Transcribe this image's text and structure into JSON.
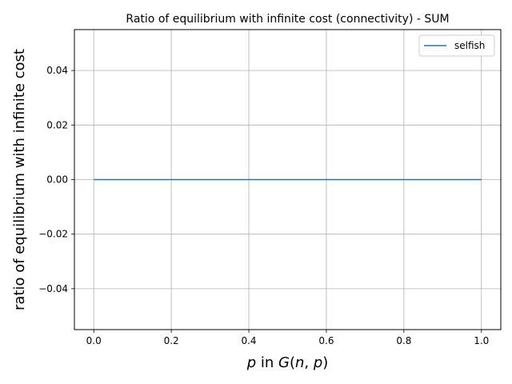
{
  "chart_data": {
    "type": "line",
    "title": "Ratio of equilibrium with infinite cost (connectivity) - SUM",
    "xlabel_parts": [
      {
        "text": "p",
        "italic": true
      },
      {
        "text": " in ",
        "italic": false
      },
      {
        "text": "G",
        "italic": true
      },
      {
        "text": "(",
        "italic": false
      },
      {
        "text": "n",
        "italic": true
      },
      {
        "text": ", ",
        "italic": false
      },
      {
        "text": "p",
        "italic": true
      },
      {
        "text": ")",
        "italic": false
      }
    ],
    "ylabel": "ratio of equilibrium with infinite cost",
    "xlim": [
      -0.05,
      1.05
    ],
    "ylim": [
      -0.055,
      0.055
    ],
    "x_ticks": [
      0.0,
      0.2,
      0.4,
      0.6,
      0.8,
      1.0
    ],
    "x_tick_labels": [
      "0.0",
      "0.2",
      "0.4",
      "0.6",
      "0.8",
      "1.0"
    ],
    "y_ticks": [
      -0.04,
      -0.02,
      0.0,
      0.02,
      0.04
    ],
    "y_tick_labels": [
      "−0.04",
      "−0.02",
      "0.00",
      "0.02",
      "0.04"
    ],
    "grid": true,
    "legend_position": "top-right",
    "series": [
      {
        "name": "selfish",
        "color": "#1f77b4",
        "x": [
          0.0,
          0.1,
          0.2,
          0.3,
          0.4,
          0.5,
          0.6,
          0.7,
          0.8,
          0.9,
          1.0
        ],
        "y": [
          0,
          0,
          0,
          0,
          0,
          0,
          0,
          0,
          0,
          0,
          0
        ]
      }
    ]
  }
}
